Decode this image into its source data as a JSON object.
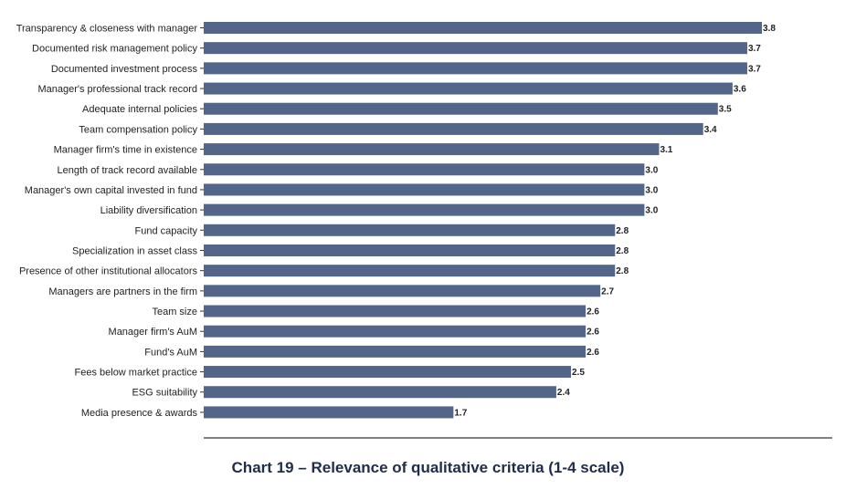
{
  "caption": "Chart 19 – Relevance of qualitative criteria (1-4 scale)",
  "chart_data": {
    "type": "bar",
    "orientation": "horizontal",
    "title": "Chart 19 – Relevance of qualitative criteria (1-4 scale)",
    "categories": [
      "Transparency & closeness with manager",
      "Documented risk management policy",
      "Documented investment process",
      "Manager's professional track record",
      "Adequate internal policies",
      "Team compensation policy",
      "Manager firm's time in existence",
      "Length of track record available",
      "Manager's own capital invested in fund",
      "Liability diversification",
      "Fund capacity",
      "Specialization in asset class",
      "Presence of other institutional allocators",
      "Managers are partners in the firm",
      "Team size",
      "Manager firm's AuM",
      "Fund's AuM",
      "Fees below market practice",
      "ESG suitability",
      "Media presence & awards"
    ],
    "values": [
      3.8,
      3.7,
      3.7,
      3.6,
      3.5,
      3.4,
      3.1,
      3.0,
      3.0,
      3.0,
      2.8,
      2.8,
      2.8,
      2.7,
      2.6,
      2.6,
      2.6,
      2.5,
      2.4,
      1.7
    ],
    "value_labels": [
      "3.8",
      "3.7",
      "3.7",
      "3.6",
      "3.5",
      "3.4",
      "3.1",
      "3.0",
      "3.0",
      "3.0",
      "2.8",
      "2.8",
      "2.8",
      "2.7",
      "2.6",
      "2.6",
      "2.6",
      "2.5",
      "2.4",
      "1.7"
    ],
    "xlim": [
      0,
      4.3
    ],
    "bar_color": "#536588",
    "grid": false,
    "legend": "none"
  }
}
